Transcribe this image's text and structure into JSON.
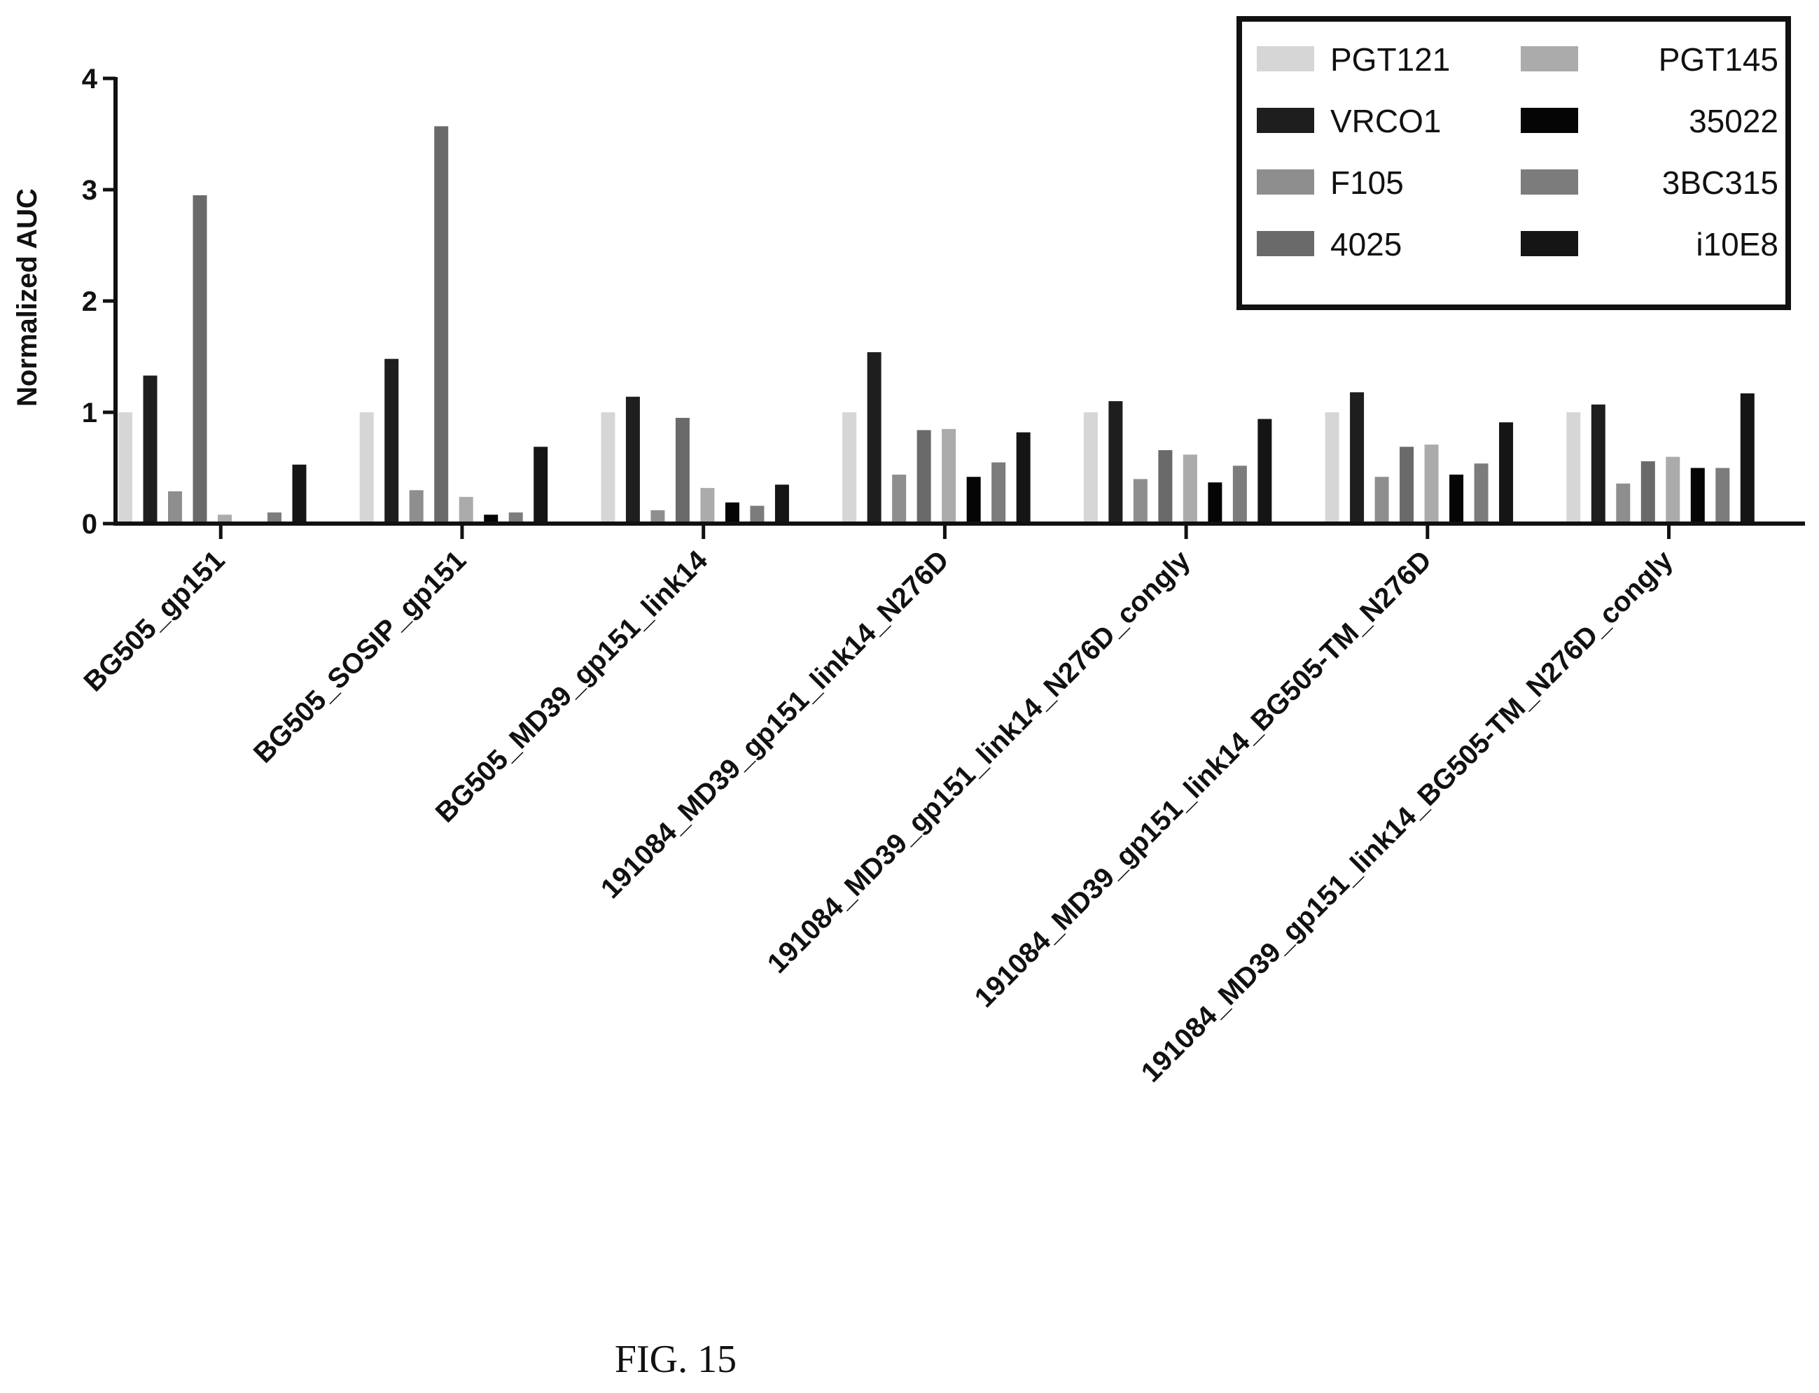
{
  "chart_data": {
    "type": "bar",
    "ylabel": "Normalized AUC",
    "ylim": [
      0,
      4
    ],
    "yticks": [
      0,
      1,
      2,
      3,
      4
    ],
    "legend_position": "top-right",
    "categories": [
      "BG505_gp151",
      "BG505_SOSIP_gp151",
      "BG505_MD39_gp151_link14",
      "191084_MD39_gp151_link14_N276D",
      "191084_MD39_gp151_link14_N276D_congly",
      "191084_MD39_gp151_link14_BG505-TM_N276D",
      "191084_MD39_gp151_link14_BG505-TM_N276D_congly"
    ],
    "series": [
      {
        "name": "PGT121",
        "color": "#d6d6d6",
        "values": [
          1.0,
          1.0,
          1.0,
          1.0,
          1.0,
          1.0,
          1.0
        ]
      },
      {
        "name": "VRCO1",
        "color": "#1e1e1e",
        "values": [
          1.33,
          1.48,
          1.14,
          1.54,
          1.1,
          1.18,
          1.07
        ]
      },
      {
        "name": "F105",
        "color": "#8e8e8e",
        "values": [
          0.29,
          0.3,
          0.12,
          0.44,
          0.4,
          0.42,
          0.36
        ]
      },
      {
        "name": "4025",
        "color": "#6a6a6a",
        "values": [
          2.95,
          3.57,
          0.95,
          0.84,
          0.66,
          0.69,
          0.56
        ]
      },
      {
        "name": "PGT145",
        "color": "#ababab",
        "values": [
          0.08,
          0.24,
          0.32,
          0.85,
          0.62,
          0.71,
          0.6
        ]
      },
      {
        "name": "35022",
        "color": "#050505",
        "values": [
          0.0,
          0.08,
          0.19,
          0.42,
          0.37,
          0.44,
          0.5
        ]
      },
      {
        "name": "3BC315",
        "color": "#7c7c7c",
        "values": [
          0.1,
          0.1,
          0.16,
          0.55,
          0.52,
          0.54,
          0.5
        ]
      },
      {
        "name": "i10E8",
        "color": "#151515",
        "values": [
          0.53,
          0.69,
          0.35,
          0.82,
          0.94,
          0.91,
          1.17
        ]
      }
    ]
  },
  "figure": {
    "caption": "FIG. 15"
  }
}
